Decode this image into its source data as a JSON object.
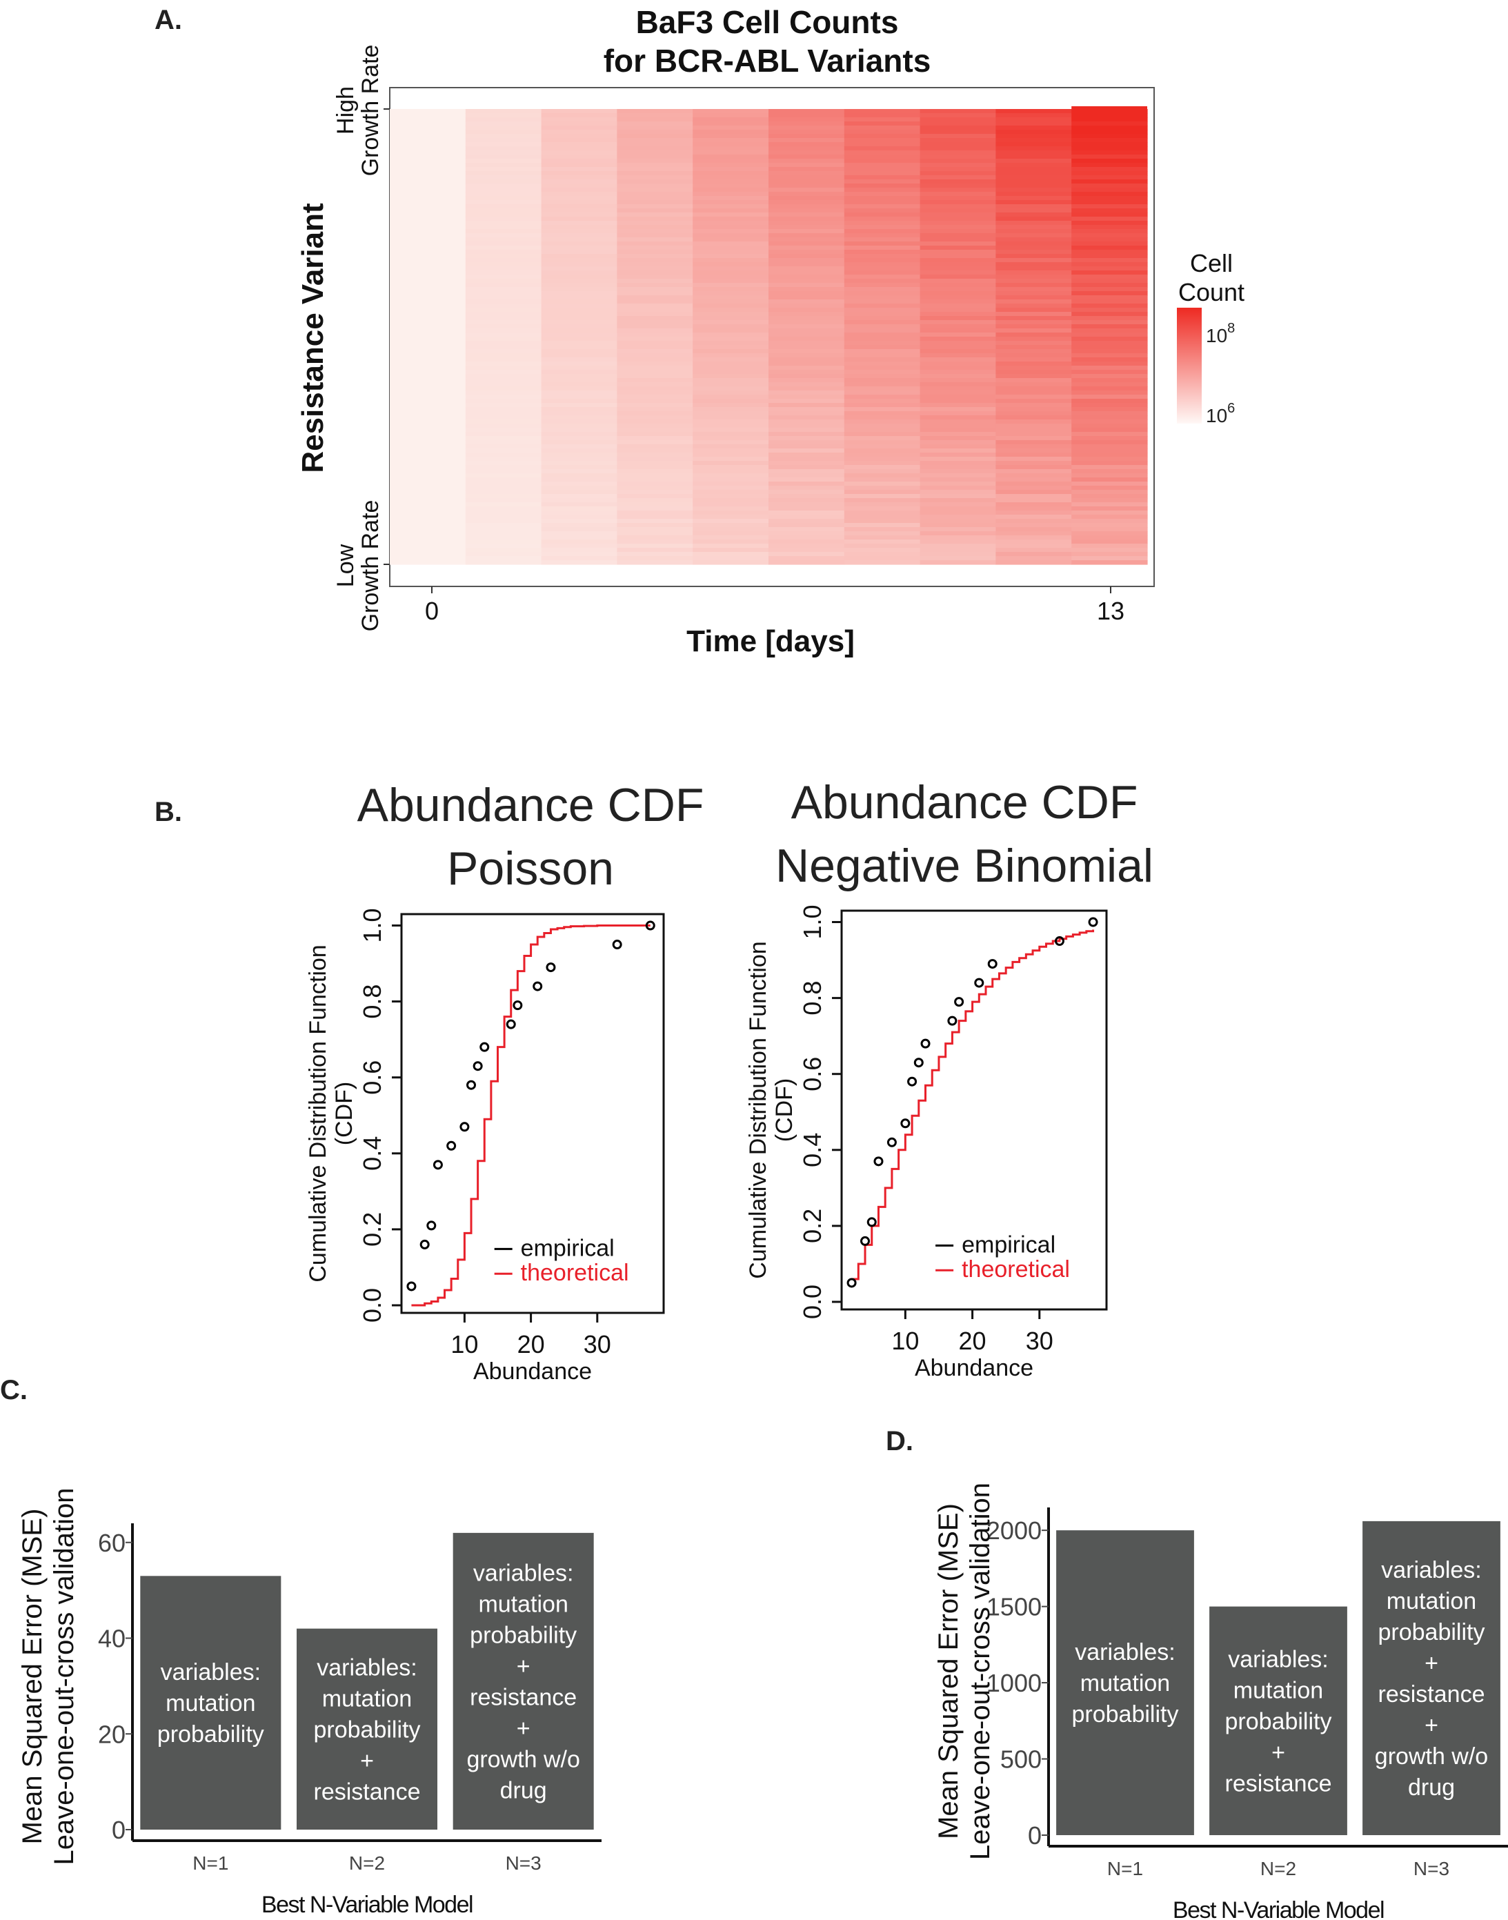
{
  "panels": {
    "A": {
      "letter": "A."
    },
    "B": {
      "letter": "B."
    },
    "C": {
      "letter": "C."
    },
    "D": {
      "letter": "D."
    }
  },
  "colors": {
    "heat_low": "#fdf0ec",
    "heat_high": "#ee2a22",
    "cdf_theoretical": "#e8202a",
    "cdf_empirical": "#000000",
    "bar_fill": "#555756"
  },
  "chart_data": [
    {
      "type": "heatmap",
      "id": "A",
      "title_lines": [
        "BaF3 Cell Counts",
        "for BCR-ABL Variants"
      ],
      "xlabel": "Time [days]",
      "ylabel": "Resistance Variant",
      "x_ticks": [
        "0",
        "13"
      ],
      "x_range": [
        0,
        13
      ],
      "y_top_label": [
        "High",
        "Growth Rate"
      ],
      "y_bottom_label": [
        "Low",
        "Growth Rate"
      ],
      "legend_title": [
        "Cell",
        "Count"
      ],
      "legend_ticks": [
        {
          "base": "10",
          "exp": "8"
        },
        {
          "base": "10",
          "exp": "6"
        }
      ],
      "columns": 10,
      "scale": "log"
    },
    {
      "type": "line",
      "id": "B1",
      "title_lines": [
        "Abundance CDF",
        "Poisson"
      ],
      "xlabel": "Abundance",
      "ylabel_lines": [
        "Cumulative Distribution Function",
        "(CDF)"
      ],
      "x_ticks": [
        10,
        20,
        30
      ],
      "y_ticks": [
        "0.0",
        "0.2",
        "0.4",
        "0.6",
        "0.8",
        "1.0"
      ],
      "xlim": [
        0.5,
        40
      ],
      "ylim": [
        -0.02,
        1.03
      ],
      "legend": [
        "empirical",
        "theoretical"
      ],
      "empirical": {
        "x": [
          2,
          4,
          5,
          6,
          8,
          10,
          11,
          12,
          13,
          17,
          18,
          21,
          23,
          33,
          38
        ],
        "y": [
          0.05,
          0.16,
          0.21,
          0.37,
          0.42,
          0.47,
          0.58,
          0.63,
          0.68,
          0.74,
          0.79,
          0.84,
          0.89,
          0.95,
          1.0
        ]
      },
      "theoretical": {
        "x": [
          2,
          3,
          4,
          5,
          6,
          7,
          8,
          9,
          10,
          11,
          12,
          13,
          14,
          15,
          16,
          17,
          18,
          19,
          20,
          21,
          22,
          23,
          24,
          25,
          26,
          28,
          30,
          38
        ],
        "y": [
          0.0,
          0.0,
          0.005,
          0.01,
          0.02,
          0.04,
          0.07,
          0.12,
          0.19,
          0.28,
          0.38,
          0.49,
          0.59,
          0.68,
          0.76,
          0.83,
          0.88,
          0.92,
          0.95,
          0.97,
          0.98,
          0.99,
          0.993,
          0.996,
          0.998,
          0.999,
          1.0,
          1.0
        ]
      }
    },
    {
      "type": "line",
      "id": "B2",
      "title_lines": [
        "Abundance CDF",
        "Negative Binomial"
      ],
      "xlabel": "Abundance",
      "ylabel_lines": [
        "Cumulative Distribution Function",
        "(CDF)"
      ],
      "x_ticks": [
        10,
        20,
        30
      ],
      "y_ticks": [
        "0.0",
        "0.2",
        "0.4",
        "0.6",
        "0.8",
        "1.0"
      ],
      "xlim": [
        0.5,
        40
      ],
      "ylim": [
        -0.02,
        1.03
      ],
      "legend": [
        "empirical",
        "theoretical"
      ],
      "empirical": {
        "x": [
          2,
          4,
          5,
          6,
          8,
          10,
          11,
          12,
          13,
          17,
          18,
          21,
          23,
          33,
          38
        ],
        "y": [
          0.05,
          0.16,
          0.21,
          0.37,
          0.42,
          0.47,
          0.58,
          0.63,
          0.68,
          0.74,
          0.79,
          0.84,
          0.89,
          0.95,
          1.0
        ]
      },
      "theoretical": {
        "x": [
          2,
          3,
          4,
          5,
          6,
          7,
          8,
          9,
          10,
          11,
          12,
          13,
          14,
          15,
          16,
          17,
          18,
          19,
          20,
          21,
          22,
          23,
          24,
          25,
          26,
          27,
          28,
          29,
          30,
          31,
          32,
          33,
          34,
          35,
          36,
          37,
          38
        ],
        "y": [
          0.06,
          0.1,
          0.15,
          0.2,
          0.25,
          0.3,
          0.35,
          0.4,
          0.44,
          0.49,
          0.53,
          0.57,
          0.61,
          0.645,
          0.68,
          0.71,
          0.74,
          0.765,
          0.79,
          0.81,
          0.83,
          0.85,
          0.865,
          0.88,
          0.895,
          0.905,
          0.915,
          0.925,
          0.935,
          0.943,
          0.95,
          0.956,
          0.962,
          0.967,
          0.972,
          0.976,
          0.98
        ]
      }
    },
    {
      "type": "bar",
      "id": "C",
      "xlabel": "Best N-Variable Model",
      "ylabel_lines": [
        "Mean Squared Error (MSE)",
        "Leave-one-out-cross validation"
      ],
      "categories": [
        "N=1",
        "N=2",
        "N=3"
      ],
      "values": [
        53,
        42,
        62
      ],
      "ylim": [
        0,
        64
      ],
      "y_ticks": [
        0,
        20,
        40,
        60
      ],
      "bar_labels": [
        [
          "variables:",
          "mutation",
          "probability"
        ],
        [
          "variables:",
          "mutation",
          "probability",
          "+",
          "resistance"
        ],
        [
          "variables:",
          "mutation",
          "probability",
          "+",
          "resistance",
          "+",
          "growth w/o",
          "drug"
        ]
      ]
    },
    {
      "type": "bar",
      "id": "D",
      "xlabel": "Best N-Variable Model",
      "ylabel_lines": [
        "Mean Squared Error (MSE)",
        "Leave-one-out-cross validation"
      ],
      "categories": [
        "N=1",
        "N=2",
        "N=3"
      ],
      "values": [
        2000,
        1500,
        2060
      ],
      "ylim": [
        0,
        2150
      ],
      "y_ticks": [
        0,
        500,
        1000,
        1500,
        2000
      ],
      "bar_labels": [
        [
          "variables:",
          "mutation",
          "probability"
        ],
        [
          "variables:",
          "mutation",
          "probability",
          "+",
          "resistance"
        ],
        [
          "variables:",
          "mutation",
          "probability",
          "+",
          "resistance",
          "+",
          "growth w/o",
          "drug"
        ]
      ]
    }
  ]
}
